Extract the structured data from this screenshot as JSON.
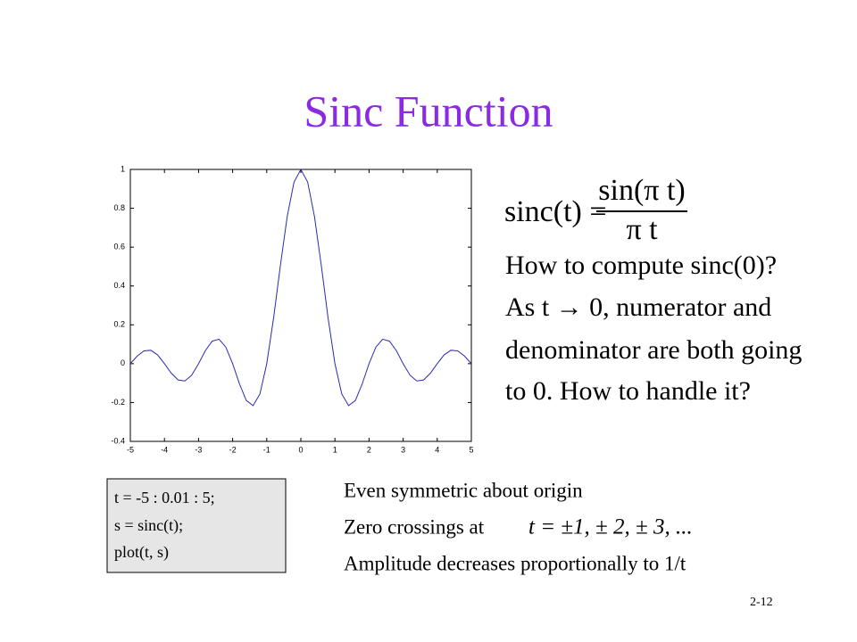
{
  "title": "Sinc Function",
  "formula": {
    "lhs": "sinc(t) =",
    "numerator": "sin(π t)",
    "denominator": "π t"
  },
  "notes": [
    "How to compute sinc(0)?",
    "As t → 0, numerator and",
    "denominator are both going",
    "to 0.  How to handle it?"
  ],
  "code": [
    "t = -5 : 0.01 : 5;",
    "s = sinc(t);",
    "plot(t, s)"
  ],
  "properties": {
    "symmetry": "Even symmetric about origin",
    "zero_label": "Zero crossings at",
    "zeros": "t = ±1, ± 2, ± 3, ...",
    "amplitude": "Amplitude decreases proportionally to 1/t"
  },
  "page_number": "2-12",
  "chart_data": {
    "type": "line",
    "color": "#2b2bb0",
    "x": [
      -5,
      -4.8,
      -4.6,
      -4.4,
      -4.2,
      -4,
      -3.8,
      -3.6,
      -3.4,
      -3.2,
      -3,
      -2.8,
      -2.6,
      -2.4,
      -2.2,
      -2,
      -1.8,
      -1.6,
      -1.4,
      -1.2,
      -1,
      -0.8,
      -0.6,
      -0.4,
      -0.2,
      0,
      0.2,
      0.4,
      0.6,
      0.8,
      1,
      1.2,
      1.4,
      1.6,
      1.8,
      2,
      2.2,
      2.4,
      2.6,
      2.8,
      3,
      3.2,
      3.4,
      3.6,
      3.8,
      4,
      4.2,
      4.4,
      4.6,
      4.8,
      5
    ],
    "values": [
      0,
      0.039,
      0.066,
      0.069,
      0.045,
      0,
      -0.049,
      -0.084,
      -0.089,
      -0.059,
      0,
      0.067,
      0.116,
      0.126,
      0.085,
      0,
      -0.104,
      -0.189,
      -0.216,
      -0.156,
      0,
      0.234,
      0.505,
      0.757,
      0.935,
      1,
      0.935,
      0.757,
      0.505,
      0.234,
      0,
      -0.156,
      -0.216,
      -0.189,
      -0.104,
      0,
      0.085,
      0.126,
      0.116,
      0.067,
      0,
      -0.059,
      -0.089,
      -0.084,
      -0.049,
      0,
      0.045,
      0.069,
      0.066,
      0.039,
      0
    ],
    "xlim": [
      -5,
      5
    ],
    "ylim": [
      -0.4,
      1
    ],
    "xticks": [
      -5,
      -4,
      -3,
      -2,
      -1,
      0,
      1,
      2,
      3,
      4,
      5
    ],
    "yticks": [
      -0.4,
      -0.2,
      0,
      0.2,
      0.4,
      0.6,
      0.8,
      1
    ],
    "grid": false
  }
}
